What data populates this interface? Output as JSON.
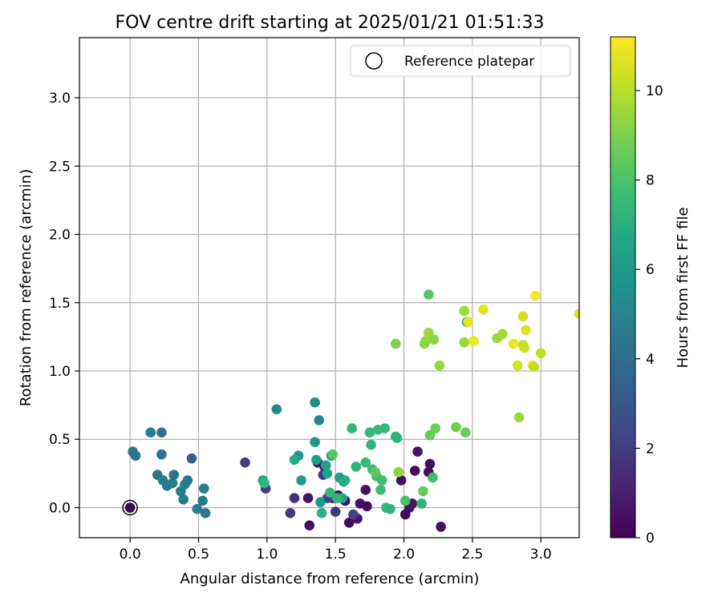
{
  "chart_data": {
    "type": "scatter",
    "title": "FOV centre drift starting at 2025/01/21 01:51:33",
    "xlabel": "Angular distance from reference (arcmin)",
    "ylabel": "Rotation from reference (arcmin)",
    "xlim": [
      -0.37,
      3.28
    ],
    "ylim": [
      -0.22,
      3.44
    ],
    "xticks": [
      0.0,
      0.5,
      1.0,
      1.5,
      2.0,
      2.5,
      3.0
    ],
    "yticks": [
      0.0,
      0.5,
      1.0,
      1.5,
      2.0,
      2.5,
      3.0
    ],
    "xtick_labels": [
      "0.0",
      "0.5",
      "1.0",
      "1.5",
      "2.0",
      "2.5",
      "3.0"
    ],
    "ytick_labels": [
      "0.0",
      "0.5",
      "1.0",
      "1.5",
      "2.0",
      "2.5",
      "3.0"
    ],
    "grid": true,
    "legend": {
      "position": "top-right",
      "entries": [
        "Reference platepar"
      ]
    },
    "reference": {
      "x": 0.0,
      "y": 0.0,
      "label": "Reference platepar"
    },
    "colorbar": {
      "label": "Hours from first FF file",
      "min": 0,
      "max": 11.2,
      "ticks": [
        0,
        2,
        4,
        6,
        8,
        10
      ],
      "tick_labels": [
        "0",
        "2",
        "4",
        "6",
        "8",
        "10"
      ],
      "colormap": "viridis"
    },
    "points": [
      {
        "x": 0.0,
        "y": 0.0,
        "h": 0.1
      },
      {
        "x": 1.31,
        "y": -0.13,
        "h": 0.4
      },
      {
        "x": 1.3,
        "y": 0.07,
        "h": 0.6
      },
      {
        "x": 1.37,
        "y": 0.33,
        "h": 0.5
      },
      {
        "x": 1.42,
        "y": 0.3,
        "h": 0.7
      },
      {
        "x": 1.48,
        "y": 0.07,
        "h": 0.3
      },
      {
        "x": 1.52,
        "y": 0.09,
        "h": 0.4
      },
      {
        "x": 1.57,
        "y": 0.05,
        "h": 0.5
      },
      {
        "x": 1.6,
        "y": -0.11,
        "h": 0.3
      },
      {
        "x": 1.66,
        "y": -0.08,
        "h": 0.6
      },
      {
        "x": 1.68,
        "y": 0.03,
        "h": 0.4
      },
      {
        "x": 1.73,
        "y": 0.01,
        "h": 0.3
      },
      {
        "x": 1.72,
        "y": 0.13,
        "h": 0.5
      },
      {
        "x": 1.98,
        "y": 0.2,
        "h": 0.4
      },
      {
        "x": 2.01,
        "y": -0.05,
        "h": 0.3
      },
      {
        "x": 2.04,
        "y": 0.0,
        "h": 0.5
      },
      {
        "x": 2.08,
        "y": 0.27,
        "h": 0.4
      },
      {
        "x": 2.1,
        "y": 0.41,
        "h": 0.6
      },
      {
        "x": 2.18,
        "y": 0.26,
        "h": 0.3
      },
      {
        "x": 2.19,
        "y": 0.32,
        "h": 0.4
      },
      {
        "x": 2.27,
        "y": -0.14,
        "h": 0.5
      },
      {
        "x": 2.06,
        "y": 0.03,
        "h": 0.6
      },
      {
        "x": 1.17,
        "y": -0.04,
        "h": 1.8
      },
      {
        "x": 1.2,
        "y": 0.07,
        "h": 1.6
      },
      {
        "x": 0.84,
        "y": 0.33,
        "h": 2.0
      },
      {
        "x": 0.99,
        "y": 0.14,
        "h": 2.1
      },
      {
        "x": 1.41,
        "y": 0.24,
        "h": 1.9
      },
      {
        "x": 1.44,
        "y": 0.07,
        "h": 2.2
      },
      {
        "x": 1.5,
        "y": -0.03,
        "h": 1.8
      },
      {
        "x": 1.63,
        "y": -0.05,
        "h": 2.0
      },
      {
        "x": 0.02,
        "y": 0.41,
        "h": 4.5
      },
      {
        "x": 0.04,
        "y": 0.38,
        "h": 4.3
      },
      {
        "x": 0.15,
        "y": 0.55,
        "h": 4.6
      },
      {
        "x": 0.23,
        "y": 0.55,
        "h": 4.4
      },
      {
        "x": 0.23,
        "y": 0.39,
        "h": 4.2
      },
      {
        "x": 0.2,
        "y": 0.24,
        "h": 4.5
      },
      {
        "x": 0.24,
        "y": 0.2,
        "h": 4.7
      },
      {
        "x": 0.27,
        "y": 0.16,
        "h": 4.4
      },
      {
        "x": 0.31,
        "y": 0.18,
        "h": 4.9
      },
      {
        "x": 0.32,
        "y": 0.24,
        "h": 4.3
      },
      {
        "x": 0.37,
        "y": 0.12,
        "h": 4.6
      },
      {
        "x": 0.39,
        "y": 0.06,
        "h": 4.5
      },
      {
        "x": 0.4,
        "y": 0.17,
        "h": 4.8
      },
      {
        "x": 0.42,
        "y": 0.2,
        "h": 4.4
      },
      {
        "x": 0.45,
        "y": 0.36,
        "h": 3.4
      },
      {
        "x": 0.49,
        "y": -0.01,
        "h": 4.6
      },
      {
        "x": 0.53,
        "y": 0.05,
        "h": 4.5
      },
      {
        "x": 0.54,
        "y": 0.14,
        "h": 4.7
      },
      {
        "x": 0.55,
        "y": -0.04,
        "h": 4.4
      },
      {
        "x": 1.07,
        "y": 0.72,
        "h": 5.2
      },
      {
        "x": 1.35,
        "y": 0.77,
        "h": 5.5
      },
      {
        "x": 1.38,
        "y": 0.64,
        "h": 5.3
      },
      {
        "x": 1.35,
        "y": 0.48,
        "h": 5.8
      },
      {
        "x": 1.25,
        "y": 0.2,
        "h": 6.2
      },
      {
        "x": 1.36,
        "y": 0.35,
        "h": 6.3
      },
      {
        "x": 1.39,
        "y": 0.04,
        "h": 6.0
      },
      {
        "x": 1.43,
        "y": 0.31,
        "h": 6.4
      },
      {
        "x": 1.44,
        "y": 0.25,
        "h": 6.5
      },
      {
        "x": 1.47,
        "y": 0.38,
        "h": 6.1
      },
      {
        "x": 1.53,
        "y": 0.22,
        "h": 6.3
      },
      {
        "x": 1.56,
        "y": 0.19,
        "h": 6.4
      },
      {
        "x": 1.55,
        "y": 0.07,
        "h": 6.6
      },
      {
        "x": 1.23,
        "y": 0.38,
        "h": 6.0
      },
      {
        "x": 1.2,
        "y": 0.35,
        "h": 6.9
      },
      {
        "x": 0.97,
        "y": 0.2,
        "h": 6.7
      },
      {
        "x": 0.98,
        "y": 0.18,
        "h": 7.3
      },
      {
        "x": 1.4,
        "y": -0.04,
        "h": 7.1
      },
      {
        "x": 1.46,
        "y": 0.11,
        "h": 7.4
      },
      {
        "x": 1.51,
        "y": 0.07,
        "h": 7.2
      },
      {
        "x": 1.57,
        "y": 0.2,
        "h": 7.0
      },
      {
        "x": 1.62,
        "y": 0.58,
        "h": 7.3
      },
      {
        "x": 1.65,
        "y": 0.3,
        "h": 7.2
      },
      {
        "x": 1.72,
        "y": 0.33,
        "h": 7.5
      },
      {
        "x": 1.75,
        "y": 0.55,
        "h": 7.4
      },
      {
        "x": 1.76,
        "y": 0.46,
        "h": 7.3
      },
      {
        "x": 1.77,
        "y": 0.28,
        "h": 7.6
      },
      {
        "x": 1.8,
        "y": 0.23,
        "h": 7.7
      },
      {
        "x": 1.81,
        "y": 0.57,
        "h": 7.5
      },
      {
        "x": 1.83,
        "y": 0.13,
        "h": 7.6
      },
      {
        "x": 1.84,
        "y": 0.2,
        "h": 7.8
      },
      {
        "x": 1.86,
        "y": 0.58,
        "h": 7.4
      },
      {
        "x": 1.87,
        "y": 0.0,
        "h": 7.5
      },
      {
        "x": 1.9,
        "y": -0.01,
        "h": 7.3
      },
      {
        "x": 1.94,
        "y": 0.52,
        "h": 7.3
      },
      {
        "x": 1.95,
        "y": 0.51,
        "h": 7.1
      },
      {
        "x": 2.01,
        "y": 0.05,
        "h": 7.9
      },
      {
        "x": 2.13,
        "y": 0.03,
        "h": 7.2
      },
      {
        "x": 2.21,
        "y": 0.22,
        "h": 7.7
      },
      {
        "x": 1.48,
        "y": 0.39,
        "h": 8.2
      },
      {
        "x": 1.79,
        "y": 0.26,
        "h": 8.4
      },
      {
        "x": 1.96,
        "y": 0.26,
        "h": 9.3
      },
      {
        "x": 2.14,
        "y": 0.12,
        "h": 8.6
      },
      {
        "x": 2.19,
        "y": 0.53,
        "h": 8.5
      },
      {
        "x": 2.18,
        "y": 1.56,
        "h": 8.3
      },
      {
        "x": 2.23,
        "y": 0.58,
        "h": 8.7
      },
      {
        "x": 2.38,
        "y": 0.59,
        "h": 8.8
      },
      {
        "x": 2.45,
        "y": 0.55,
        "h": 8.6
      },
      {
        "x": 2.46,
        "y": 1.36,
        "h": 6.9
      },
      {
        "x": 1.94,
        "y": 1.2,
        "h": 9.0
      },
      {
        "x": 2.15,
        "y": 1.2,
        "h": 9.2
      },
      {
        "x": 2.16,
        "y": 1.22,
        "h": 9.3
      },
      {
        "x": 2.18,
        "y": 1.28,
        "h": 9.5
      },
      {
        "x": 2.22,
        "y": 1.23,
        "h": 9.2
      },
      {
        "x": 2.26,
        "y": 1.04,
        "h": 9.4
      },
      {
        "x": 2.44,
        "y": 1.44,
        "h": 9.6
      },
      {
        "x": 2.44,
        "y": 1.21,
        "h": 9.5
      },
      {
        "x": 2.68,
        "y": 1.24,
        "h": 9.4
      },
      {
        "x": 2.72,
        "y": 1.27,
        "h": 9.6
      },
      {
        "x": 2.84,
        "y": 0.66,
        "h": 9.5
      },
      {
        "x": 2.47,
        "y": 1.36,
        "h": 10.8
      },
      {
        "x": 2.51,
        "y": 1.22,
        "h": 11.0
      },
      {
        "x": 2.58,
        "y": 1.45,
        "h": 10.7
      },
      {
        "x": 2.8,
        "y": 1.2,
        "h": 10.9
      },
      {
        "x": 2.83,
        "y": 1.04,
        "h": 10.5
      },
      {
        "x": 2.87,
        "y": 1.4,
        "h": 10.4
      },
      {
        "x": 2.87,
        "y": 1.19,
        "h": 10.2
      },
      {
        "x": 2.88,
        "y": 1.17,
        "h": 10.3
      },
      {
        "x": 2.89,
        "y": 1.3,
        "h": 10.6
      },
      {
        "x": 2.94,
        "y": 1.04,
        "h": 11.1
      },
      {
        "x": 2.95,
        "y": 1.03,
        "h": 10.2
      },
      {
        "x": 2.96,
        "y": 1.55,
        "h": 11.1
      },
      {
        "x": 3.0,
        "y": 1.13,
        "h": 10.1
      },
      {
        "x": 3.28,
        "y": 1.42,
        "h": 10.6
      }
    ]
  }
}
